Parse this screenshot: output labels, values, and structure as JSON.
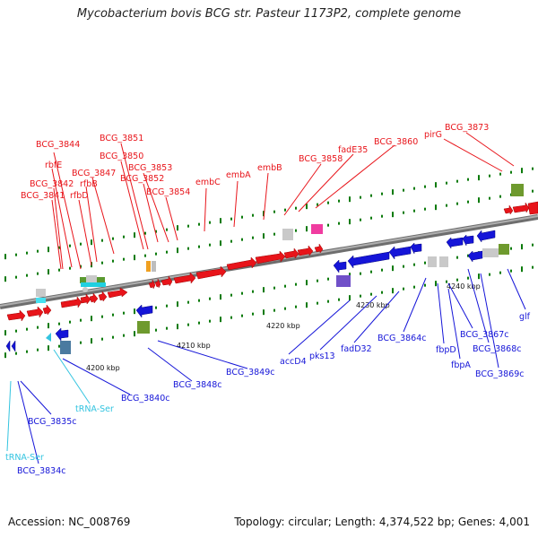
{
  "title": "Mycobacterium bovis BCG str. Pasteur 1173P2, complete genome",
  "footer": {
    "accession": "Accession: NC_008769",
    "summary": "Topology: circular; Length: 4,374,522 bp; Genes: 4,001"
  },
  "colors": {
    "forward_gene": "#e8141a",
    "reverse_gene": "#1515d8",
    "trna": "#33c4e0",
    "backbone": "#8a8a8a",
    "tick": "#0a7a0a"
  },
  "scale": [
    "4200 kbp",
    "4210 kbp",
    "4220 kbp",
    "4230 kbp",
    "4240 kbp"
  ],
  "labels_top": [
    "BCG_3844",
    "rbfE",
    "BCG_3847",
    "BCG_3842",
    "rfbB",
    "BCG_3841",
    "rfbD",
    "BCG_3851",
    "BCG_3850",
    "BCG_3853",
    "BCG_3852",
    "BCG_3854",
    "embC",
    "embA",
    "embB",
    "BCG_3858",
    "fadE35",
    "BCG_3860",
    "pirG",
    "BCG_3873"
  ],
  "labels_bottom": [
    "BCG_3835c",
    "tRNA-Ser",
    "BCG_3834c",
    "tRNA-Ser",
    "BCG_3840c",
    "BCG_3848c",
    "BCG_3849c",
    "accD4",
    "pks13",
    "fadD32",
    "BCG_3864c",
    "fbpD",
    "BCG_3867c",
    "fbpA",
    "BCG_3868c",
    "BCG_3869c",
    "glf"
  ]
}
